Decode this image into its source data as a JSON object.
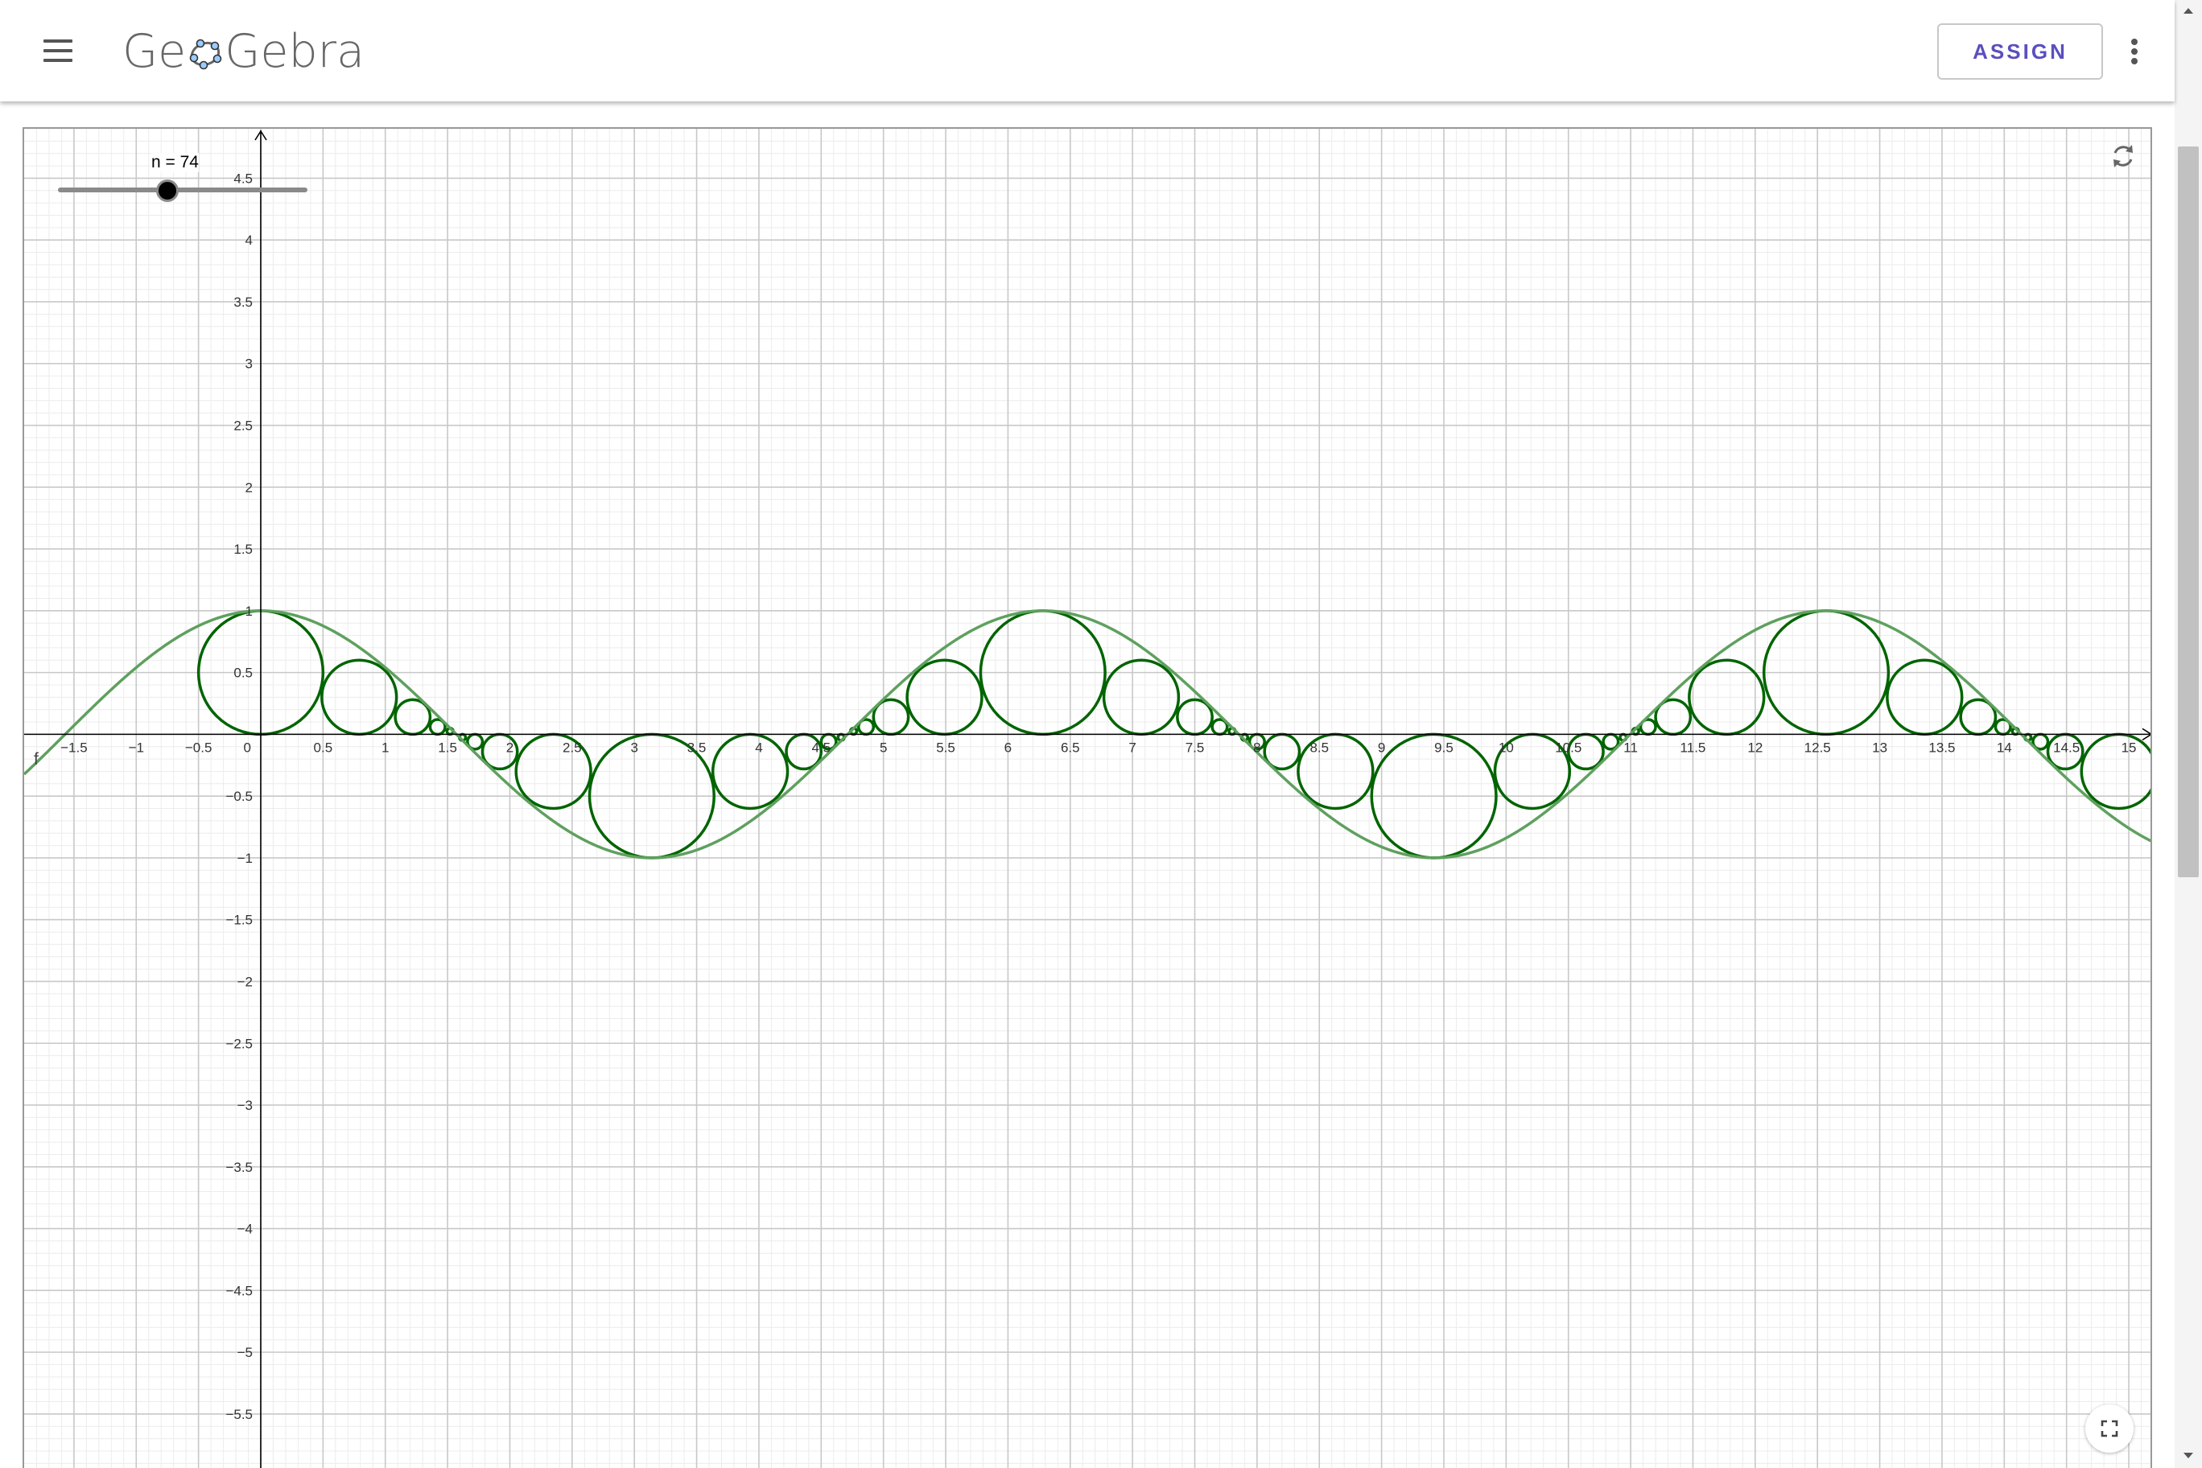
{
  "app": {
    "logo_text_left": "Ge",
    "logo_text_right": "Gebra",
    "logo_icon": "geogebra-ellipse-icon"
  },
  "header": {
    "menu_icon": "hamburger-menu-icon",
    "assign_label": "ASSIGN",
    "more_icon": "more-vertical-icon"
  },
  "slider": {
    "label": "n = 74",
    "value": 74,
    "position_fraction": 0.44
  },
  "graphics": {
    "function_label": "f",
    "reset_icon": "reset-refresh-icon",
    "fullscreen_icon": "fullscreen-icon",
    "x_ticks": [
      "−1.5",
      "−1",
      "−0.5",
      "0",
      "0.5",
      "1",
      "1.5",
      "2",
      "2.5",
      "3",
      "3.5",
      "4",
      "4.5",
      "5",
      "5.5",
      "6",
      "6.5",
      "7",
      "7.5",
      "8",
      "8.5",
      "9",
      "9.5",
      "10",
      "10.5",
      "11",
      "11.5",
      "12",
      "12.5",
      "13",
      "13.5",
      "14",
      "14.5",
      "15"
    ],
    "y_ticks": [
      "4.5",
      "4",
      "3.5",
      "3",
      "2.5",
      "2",
      "1.5",
      "1",
      "0.5",
      "−0.5",
      "−1",
      "−1.5",
      "−2",
      "−2.5",
      "−3",
      "−3.5",
      "−4",
      "−4.5",
      "−5",
      "−5.5"
    ],
    "curve_color": "#5fa05f",
    "circle_color": "#006400",
    "axis_color": "#000000"
  },
  "chart_data": {
    "type": "line",
    "title": "",
    "xlabel": "",
    "ylabel": "",
    "xlim": [
      -1.9,
      15.2
    ],
    "ylim": [
      -5.95,
      4.9
    ],
    "grid": true,
    "series": [
      {
        "name": "f",
        "function": "cos(x)"
      }
    ],
    "circles": [
      {
        "cx": 0.0,
        "cy": 0.5,
        "r": 0.5
      },
      {
        "cx": 0.79,
        "cy": 0.3,
        "r": 0.3
      },
      {
        "cx": 1.22,
        "cy": 0.14,
        "r": 0.14
      },
      {
        "cx": 1.42,
        "cy": 0.06,
        "r": 0.06
      },
      {
        "cx": 1.52,
        "cy": 0.025,
        "r": 0.025
      },
      {
        "cx": 1.62,
        "cy": -0.025,
        "r": 0.025
      },
      {
        "cx": 1.72,
        "cy": -0.06,
        "r": 0.06
      },
      {
        "cx": 1.92,
        "cy": -0.14,
        "r": 0.14
      },
      {
        "cx": 2.35,
        "cy": -0.3,
        "r": 0.3
      },
      {
        "cx": 3.14,
        "cy": -0.5,
        "r": 0.5
      },
      {
        "cx": 3.93,
        "cy": -0.3,
        "r": 0.3
      },
      {
        "cx": 4.36,
        "cy": -0.14,
        "r": 0.14
      },
      {
        "cx": 4.56,
        "cy": -0.06,
        "r": 0.06
      },
      {
        "cx": 4.66,
        "cy": -0.025,
        "r": 0.025
      },
      {
        "cx": 4.76,
        "cy": 0.025,
        "r": 0.025
      },
      {
        "cx": 4.86,
        "cy": 0.06,
        "r": 0.06
      },
      {
        "cx": 5.06,
        "cy": 0.14,
        "r": 0.14
      },
      {
        "cx": 5.49,
        "cy": 0.3,
        "r": 0.3
      },
      {
        "cx": 6.28,
        "cy": 0.5,
        "r": 0.5
      },
      {
        "cx": 7.07,
        "cy": 0.3,
        "r": 0.3
      },
      {
        "cx": 7.5,
        "cy": 0.14,
        "r": 0.14
      },
      {
        "cx": 7.7,
        "cy": 0.06,
        "r": 0.06
      },
      {
        "cx": 7.8,
        "cy": 0.025,
        "r": 0.025
      },
      {
        "cx": 7.9,
        "cy": -0.025,
        "r": 0.025
      },
      {
        "cx": 8.0,
        "cy": -0.06,
        "r": 0.06
      },
      {
        "cx": 8.2,
        "cy": -0.14,
        "r": 0.14
      },
      {
        "cx": 8.63,
        "cy": -0.3,
        "r": 0.3
      },
      {
        "cx": 9.42,
        "cy": -0.5,
        "r": 0.5
      },
      {
        "cx": 10.21,
        "cy": -0.3,
        "r": 0.3
      },
      {
        "cx": 10.64,
        "cy": -0.14,
        "r": 0.14
      },
      {
        "cx": 10.84,
        "cy": -0.06,
        "r": 0.06
      },
      {
        "cx": 10.94,
        "cy": -0.025,
        "r": 0.025
      },
      {
        "cx": 11.04,
        "cy": 0.025,
        "r": 0.025
      },
      {
        "cx": 11.14,
        "cy": 0.06,
        "r": 0.06
      },
      {
        "cx": 11.34,
        "cy": 0.14,
        "r": 0.14
      },
      {
        "cx": 11.77,
        "cy": 0.3,
        "r": 0.3
      },
      {
        "cx": 12.57,
        "cy": 0.5,
        "r": 0.5
      },
      {
        "cx": 13.36,
        "cy": 0.3,
        "r": 0.3
      },
      {
        "cx": 13.79,
        "cy": 0.14,
        "r": 0.14
      },
      {
        "cx": 13.99,
        "cy": 0.06,
        "r": 0.06
      },
      {
        "cx": 14.09,
        "cy": 0.025,
        "r": 0.025
      },
      {
        "cx": 14.19,
        "cy": -0.025,
        "r": 0.025
      },
      {
        "cx": 14.29,
        "cy": -0.06,
        "r": 0.06
      },
      {
        "cx": 14.49,
        "cy": -0.14,
        "r": 0.14
      },
      {
        "cx": 14.92,
        "cy": -0.3,
        "r": 0.3
      }
    ]
  }
}
